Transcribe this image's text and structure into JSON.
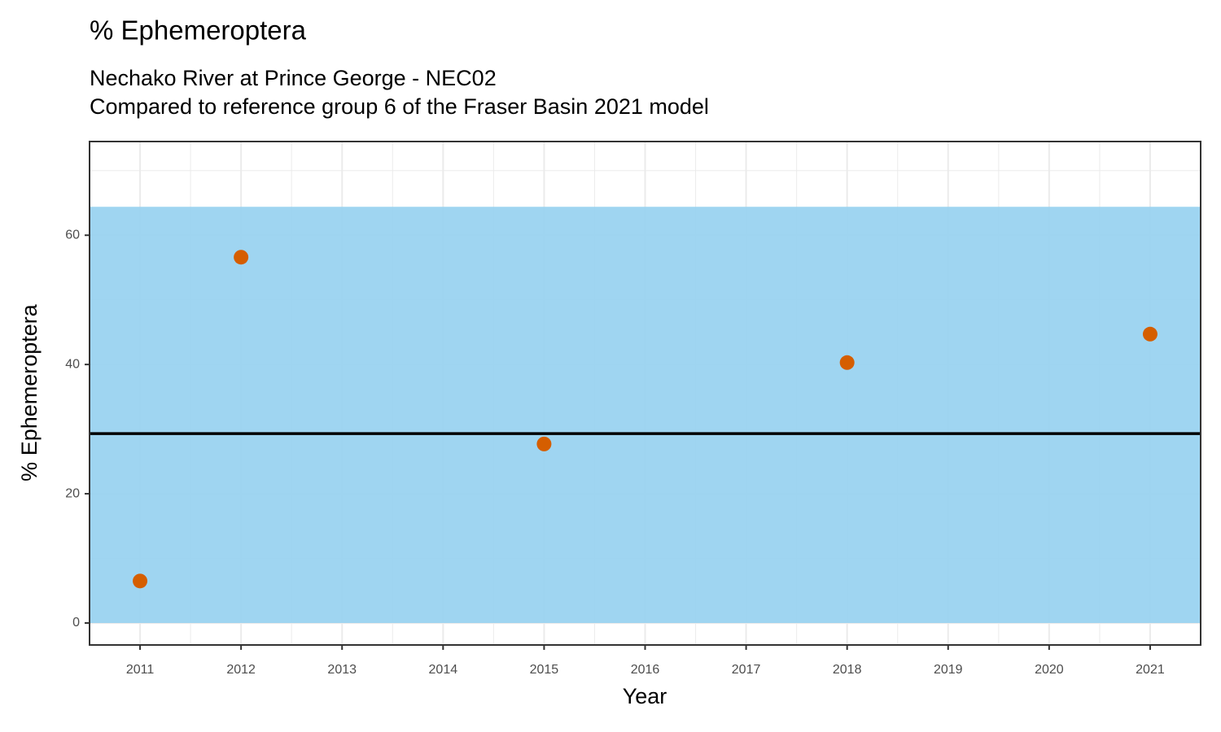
{
  "chart_data": {
    "type": "scatter",
    "title": "% Ephemeroptera",
    "subtitle": [
      "Nechako River at Prince George - NEC02",
      "Compared to reference group 6 of the Fraser Basin 2021 model"
    ],
    "x_label": "Year",
    "y_label": "% Ephemeroptera",
    "x": [
      2011,
      2012,
      2015,
      2018,
      2021
    ],
    "values": [
      6.5,
      56.6,
      27.7,
      40.3,
      44.7
    ],
    "color": "#d55e00",
    "reference_band": [
      0,
      64.4
    ],
    "band_color": "#9ad3f0",
    "reference_mean": 29.3,
    "mean_color": "#000000",
    "xlim": [
      2010.5,
      2021.5
    ],
    "xticks": [
      2011,
      2012,
      2013,
      2014,
      2015,
      2016,
      2017,
      2018,
      2019,
      2020,
      2021
    ],
    "ylim": [
      -3.4,
      74.5
    ],
    "yticks": [
      0,
      20,
      40,
      60
    ],
    "grid": true
  }
}
